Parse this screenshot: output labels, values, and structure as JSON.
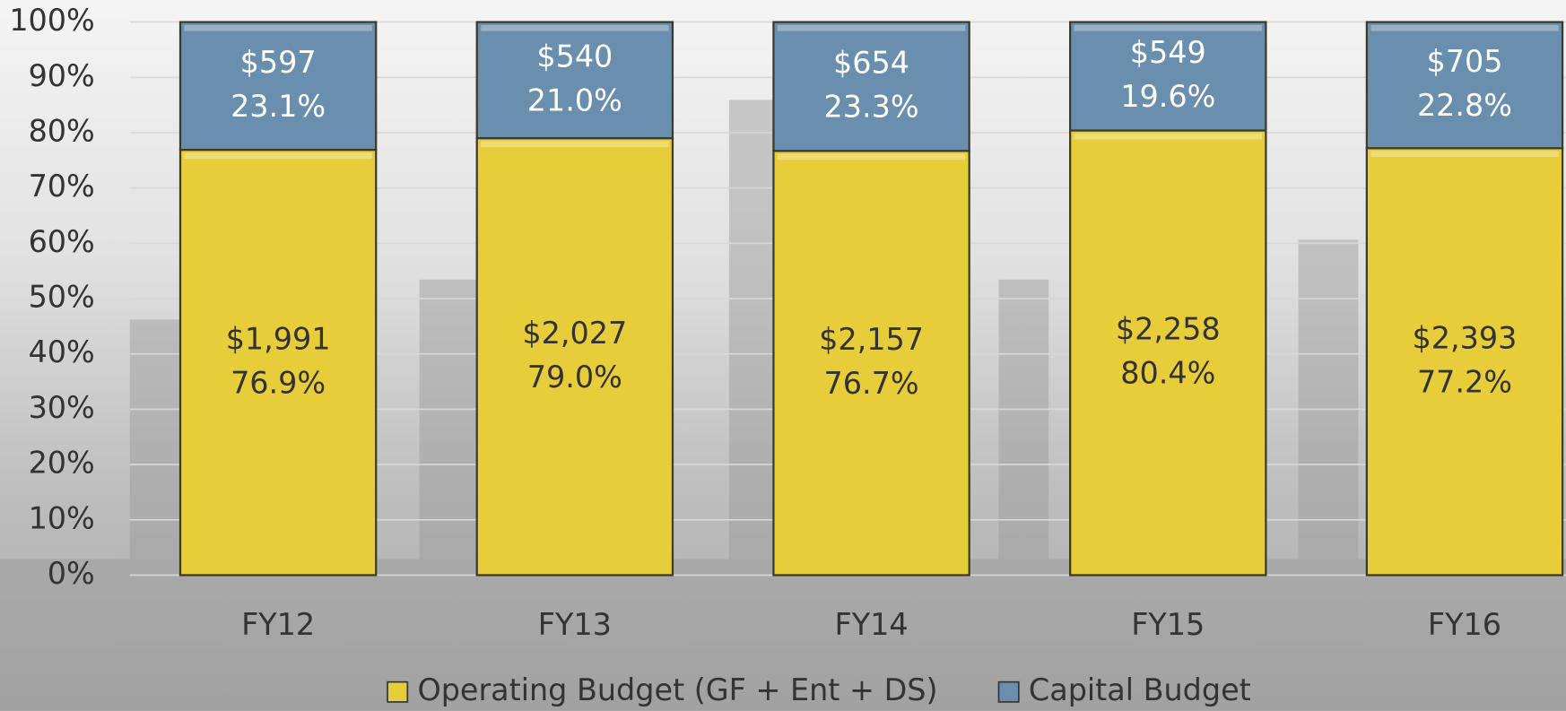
{
  "chart_data": {
    "type": "stacked_bar_percent",
    "categories": [
      "FY12",
      "FY13",
      "FY14",
      "FY15",
      "FY16"
    ],
    "series": [
      {
        "name": "Operating Budget (GF + Ent + DS)",
        "color": "#e8cd3a",
        "values": [
          76.9,
          79.0,
          76.7,
          80.4,
          77.2
        ],
        "value_labels": [
          "76.9%",
          "79.0%",
          "76.7%",
          "80.4%",
          "77.2%"
        ],
        "amounts": [
          1991,
          2027,
          2157,
          2258,
          2393
        ],
        "amount_labels": [
          "$1,991",
          "$2,027",
          "$2,157",
          "$2,258",
          "$2,393"
        ]
      },
      {
        "name": "Capital Budget",
        "color": "#6a8fae",
        "values": [
          23.1,
          21.0,
          23.3,
          19.6,
          22.8
        ],
        "value_labels": [
          "23.1%",
          "21.0%",
          "23.3%",
          "19.6%",
          "22.8%"
        ],
        "amounts": [
          597,
          540,
          654,
          549,
          705
        ],
        "amount_labels": [
          "$597",
          "$540",
          "$654",
          "$549",
          "$705"
        ]
      }
    ],
    "ylim": [
      0,
      100
    ],
    "yticks": [
      {
        "value": 0,
        "label": "0%"
      },
      {
        "value": 10,
        "label": "10%"
      },
      {
        "value": 20,
        "label": "20%"
      },
      {
        "value": 30,
        "label": "30%"
      },
      {
        "value": 40,
        "label": "40%"
      },
      {
        "value": 50,
        "label": "50%"
      },
      {
        "value": 60,
        "label": "60%"
      },
      {
        "value": 70,
        "label": "70%"
      },
      {
        "value": 80,
        "label": "80%"
      },
      {
        "value": 90,
        "label": "90%"
      },
      {
        "value": 100,
        "label": "100%"
      }
    ],
    "grid": true,
    "legend": "bottom"
  }
}
